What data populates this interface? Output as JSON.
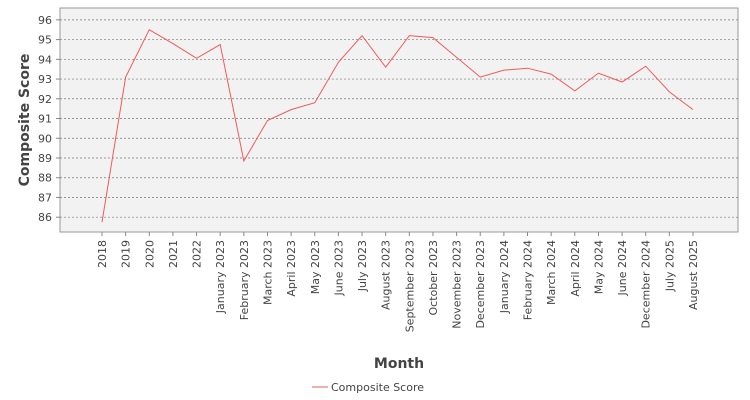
{
  "chart_data": {
    "type": "line",
    "y_label": "Composite Score",
    "x_label": "Month",
    "categories": [
      "2018",
      "2019",
      "2020",
      "2021",
      "2022",
      "January 2023",
      "February 2023",
      "March 2023",
      "April 2023",
      "May 2023",
      "June 2023",
      "July 2023",
      "August 2023",
      "September 2023",
      "October 2023",
      "November 2023",
      "December 2023",
      "January 2024",
      "February 2024",
      "March 2024",
      "April 2024",
      "May 2024",
      "June 2024",
      "December 2024",
      "July 2025",
      "August 2025"
    ],
    "series": [
      {
        "name": "Composite Score",
        "color": "#f25a5a",
        "values": [
          85.75,
          93.1,
          95.5,
          94.8,
          94.05,
          94.75,
          88.85,
          90.9,
          91.45,
          91.8,
          93.85,
          95.2,
          93.6,
          95.2,
          95.1,
          94.1,
          93.1,
          93.45,
          93.55,
          93.25,
          92.4,
          93.3,
          92.85,
          93.65,
          92.35,
          91.45
        ]
      }
    ],
    "ylim": [
      85.25,
      96.6
    ],
    "yticks": [
      86,
      87,
      88,
      89,
      90,
      91,
      92,
      93,
      94,
      95,
      96
    ],
    "grid": true
  }
}
